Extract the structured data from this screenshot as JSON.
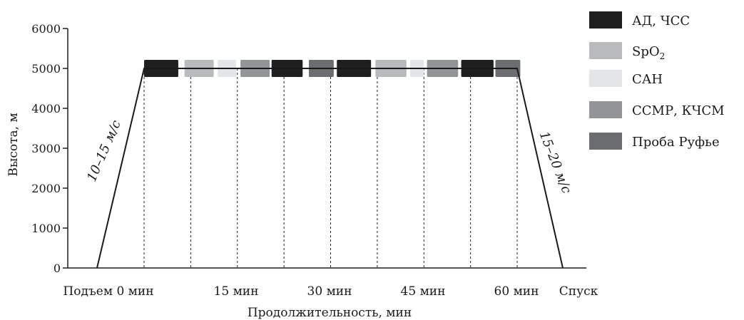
{
  "chart_data": {
    "type": "line",
    "xlabel": "Продолжительность, мин",
    "ylabel": "Высота, м",
    "ylim": [
      0,
      6000
    ],
    "yticks": [
      "0",
      "1000",
      "2000",
      "3000",
      "4000",
      "5000",
      "6000"
    ],
    "xtick_labels": [
      "Подъем 0 мин",
      "15 мин",
      "30 мин",
      "45 мин",
      "60 мин",
      "Спуск"
    ],
    "x": [
      "Подъем",
      "0 мин",
      "60 мин",
      "Спуск"
    ],
    "y": [
      0,
      5000,
      5000,
      0
    ],
    "ascent_label": "10–15 м/с",
    "descent_label": "15–20 м/с",
    "plateau_altitude": 5000,
    "legend": [
      {
        "key": "bp_hr",
        "label": "АД, ЧСС",
        "color": "#1f1f1f"
      },
      {
        "key": "spo2",
        "label": "SpO",
        "sub": "2",
        "color": "#b9babc"
      },
      {
        "key": "san",
        "label": "САН",
        "color": "#e4e5e6"
      },
      {
        "key": "ssmr",
        "label": "ССМР, КЧСМ",
        "color": "#939496"
      },
      {
        "key": "rufier",
        "label": "Проба Руфье",
        "color": "#6c6d70"
      }
    ],
    "segments": [
      {
        "key": "bp_hr",
        "start": 0,
        "end": 5.5
      },
      {
        "key": "spo2",
        "start": 6.5,
        "end": 11.2
      },
      {
        "key": "san",
        "start": 11.8,
        "end": 14.8
      },
      {
        "key": "ssmr",
        "start": 15.5,
        "end": 20.2
      },
      {
        "key": "bp_hr",
        "start": 20.5,
        "end": 25.5
      },
      {
        "key": "rufier",
        "start": 26.5,
        "end": 30.5
      },
      {
        "key": "bp_hr",
        "start": 31.0,
        "end": 36.5
      },
      {
        "key": "spo2",
        "start": 37.2,
        "end": 42.2
      },
      {
        "key": "san",
        "start": 42.8,
        "end": 45.0
      },
      {
        "key": "ssmr",
        "start": 45.5,
        "end": 50.5
      },
      {
        "key": "bp_hr",
        "start": 51.0,
        "end": 56.2
      },
      {
        "key": "rufier",
        "start": 56.5,
        "end": 60.5
      }
    ],
    "guide_lines": [
      0,
      7.5,
      15,
      22.5,
      30,
      37.5,
      45,
      52.5,
      60
    ],
    "grid": false,
    "legend_position": "right"
  }
}
